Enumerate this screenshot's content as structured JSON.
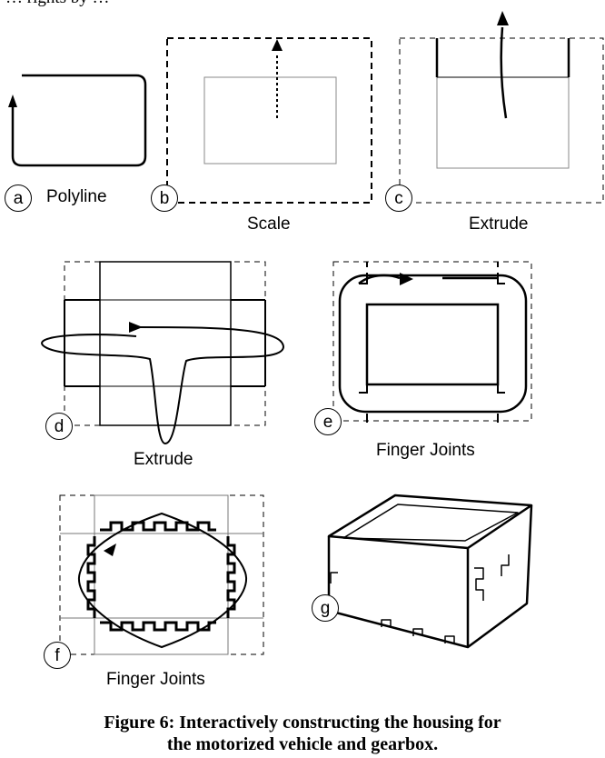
{
  "top_fragment": "… rights by …",
  "panels": [
    {
      "id": "a",
      "letter": "a",
      "label": "Polyline"
    },
    {
      "id": "b",
      "letter": "b",
      "label": "Scale"
    },
    {
      "id": "c",
      "letter": "c",
      "label": "Extrude"
    },
    {
      "id": "d",
      "letter": "d",
      "label": "Extrude"
    },
    {
      "id": "e",
      "letter": "e",
      "label": "Finger Joints"
    },
    {
      "id": "f",
      "letter": "f",
      "label": "Finger Joints"
    },
    {
      "id": "g",
      "letter": "g",
      "label": ""
    }
  ],
  "caption": {
    "line1": "Figure 6: Interactively constructing the housing for",
    "line2": "the motorized vehicle and gearbox."
  }
}
